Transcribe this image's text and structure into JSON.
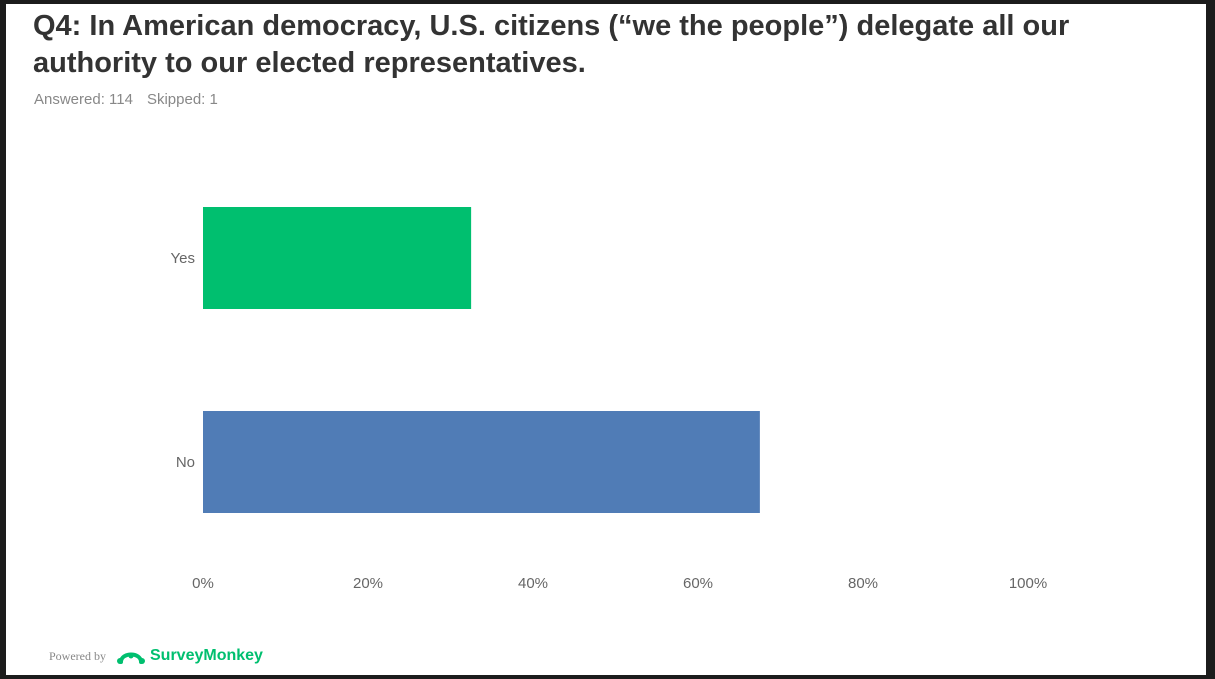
{
  "title": "Q4: In American democracy, U.S. citizens (“we the people”) delegate all our authority to our elected representatives.",
  "stats": {
    "answered": "Answered: 114",
    "skipped": "Skipped: 1"
  },
  "footer": {
    "powered_by": "Powered by",
    "brand": "SurveyMonkey",
    "logo_icon": "surveymonkey-logo-icon"
  },
  "chart_data": {
    "type": "bar",
    "orientation": "horizontal",
    "title": "",
    "xlabel": "",
    "ylabel": "",
    "categories": [
      "Yes",
      "No"
    ],
    "values": [
      32.5,
      67.5
    ],
    "colors": [
      "#00bf6f",
      "#507cb6"
    ],
    "xlim": [
      0,
      100
    ],
    "ticks": [
      "0%",
      "20%",
      "40%",
      "60%",
      "80%",
      "100%"
    ],
    "grid": false,
    "legend": "none"
  }
}
